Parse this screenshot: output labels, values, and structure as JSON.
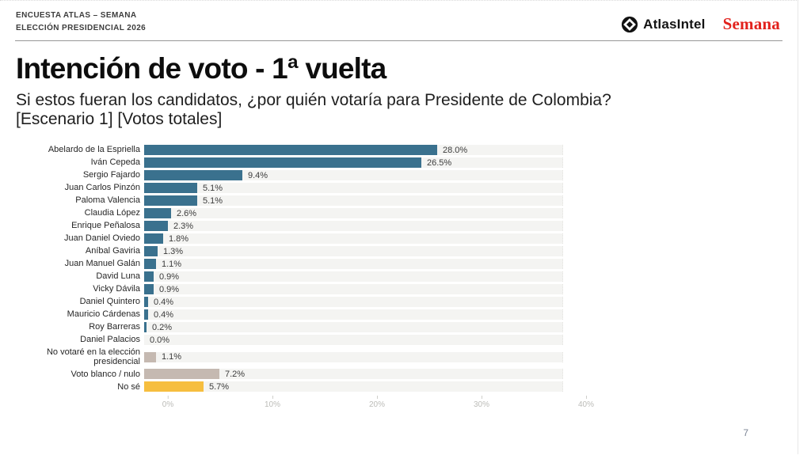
{
  "header": {
    "line1": "ENCUESTA ATLAS – SEMANA",
    "line2": "ELECCIÓN PRESIDENCIAL 2026"
  },
  "brands": {
    "atlasintel_label": "AtlasIntel",
    "semana_label": "Semana",
    "atlasintel_icon": "diamond-compass-icon",
    "semana_color": "#E2211C"
  },
  "title": "Intención de voto - 1ª vuelta",
  "subtitle_line1": "Si estos fueran los candidatos, ¿por quién votaría para Presidente de Colombia?",
  "subtitle_line2": "[Escenario 1] [Votos totales]",
  "page_number": "7",
  "colors": {
    "candidate": "#3A718E",
    "abstain": "#C5B9B1",
    "unsure": "#F6BE3F",
    "track": "#F4F4F2"
  },
  "chart_data": {
    "type": "bar",
    "orientation": "horizontal",
    "unit": "%",
    "xlim": [
      0,
      40
    ],
    "x_ticks": [
      0,
      10,
      20,
      30,
      40
    ],
    "x_tick_labels": [
      "0%",
      "10%",
      "20%",
      "30%",
      "40%"
    ],
    "grid": false,
    "legend": "none",
    "rows": [
      {
        "label": "Abelardo de la Espriella",
        "value": 28.0,
        "display": "28.0%",
        "group": "candidate"
      },
      {
        "label": "Iván Cepeda",
        "value": 26.5,
        "display": "26.5%",
        "group": "candidate"
      },
      {
        "label": "Sergio Fajardo",
        "value": 9.4,
        "display": "9.4%",
        "group": "candidate"
      },
      {
        "label": "Juan Carlos Pinzón",
        "value": 5.1,
        "display": "5.1%",
        "group": "candidate"
      },
      {
        "label": "Paloma Valencia",
        "value": 5.1,
        "display": "5.1%",
        "group": "candidate"
      },
      {
        "label": "Claudia López",
        "value": 2.6,
        "display": "2.6%",
        "group": "candidate"
      },
      {
        "label": "Enrique Peñalosa",
        "value": 2.3,
        "display": "2.3%",
        "group": "candidate"
      },
      {
        "label": "Juan Daniel Oviedo",
        "value": 1.8,
        "display": "1.8%",
        "group": "candidate"
      },
      {
        "label": "Aníbal Gaviria",
        "value": 1.3,
        "display": "1.3%",
        "group": "candidate"
      },
      {
        "label": "Juan Manuel Galán",
        "value": 1.1,
        "display": "1.1%",
        "group": "candidate"
      },
      {
        "label": "David Luna",
        "value": 0.9,
        "display": "0.9%",
        "group": "candidate"
      },
      {
        "label": "Vicky Dávila",
        "value": 0.9,
        "display": "0.9%",
        "group": "candidate"
      },
      {
        "label": "Daniel Quintero",
        "value": 0.4,
        "display": "0.4%",
        "group": "candidate"
      },
      {
        "label": "Mauricio Cárdenas",
        "value": 0.4,
        "display": "0.4%",
        "group": "candidate"
      },
      {
        "label": "Roy Barreras",
        "value": 0.2,
        "display": "0.2%",
        "group": "candidate"
      },
      {
        "label": "Daniel Palacios",
        "value": 0.0,
        "display": "0.0%",
        "group": "candidate"
      },
      {
        "label": "No votaré en la elección presidencial",
        "value": 1.1,
        "display": "1.1%",
        "group": "abstain"
      },
      {
        "label": "Voto blanco / nulo",
        "value": 7.2,
        "display": "7.2%",
        "group": "abstain"
      },
      {
        "label": "No sé",
        "value": 5.7,
        "display": "5.7%",
        "group": "unsure"
      }
    ]
  }
}
